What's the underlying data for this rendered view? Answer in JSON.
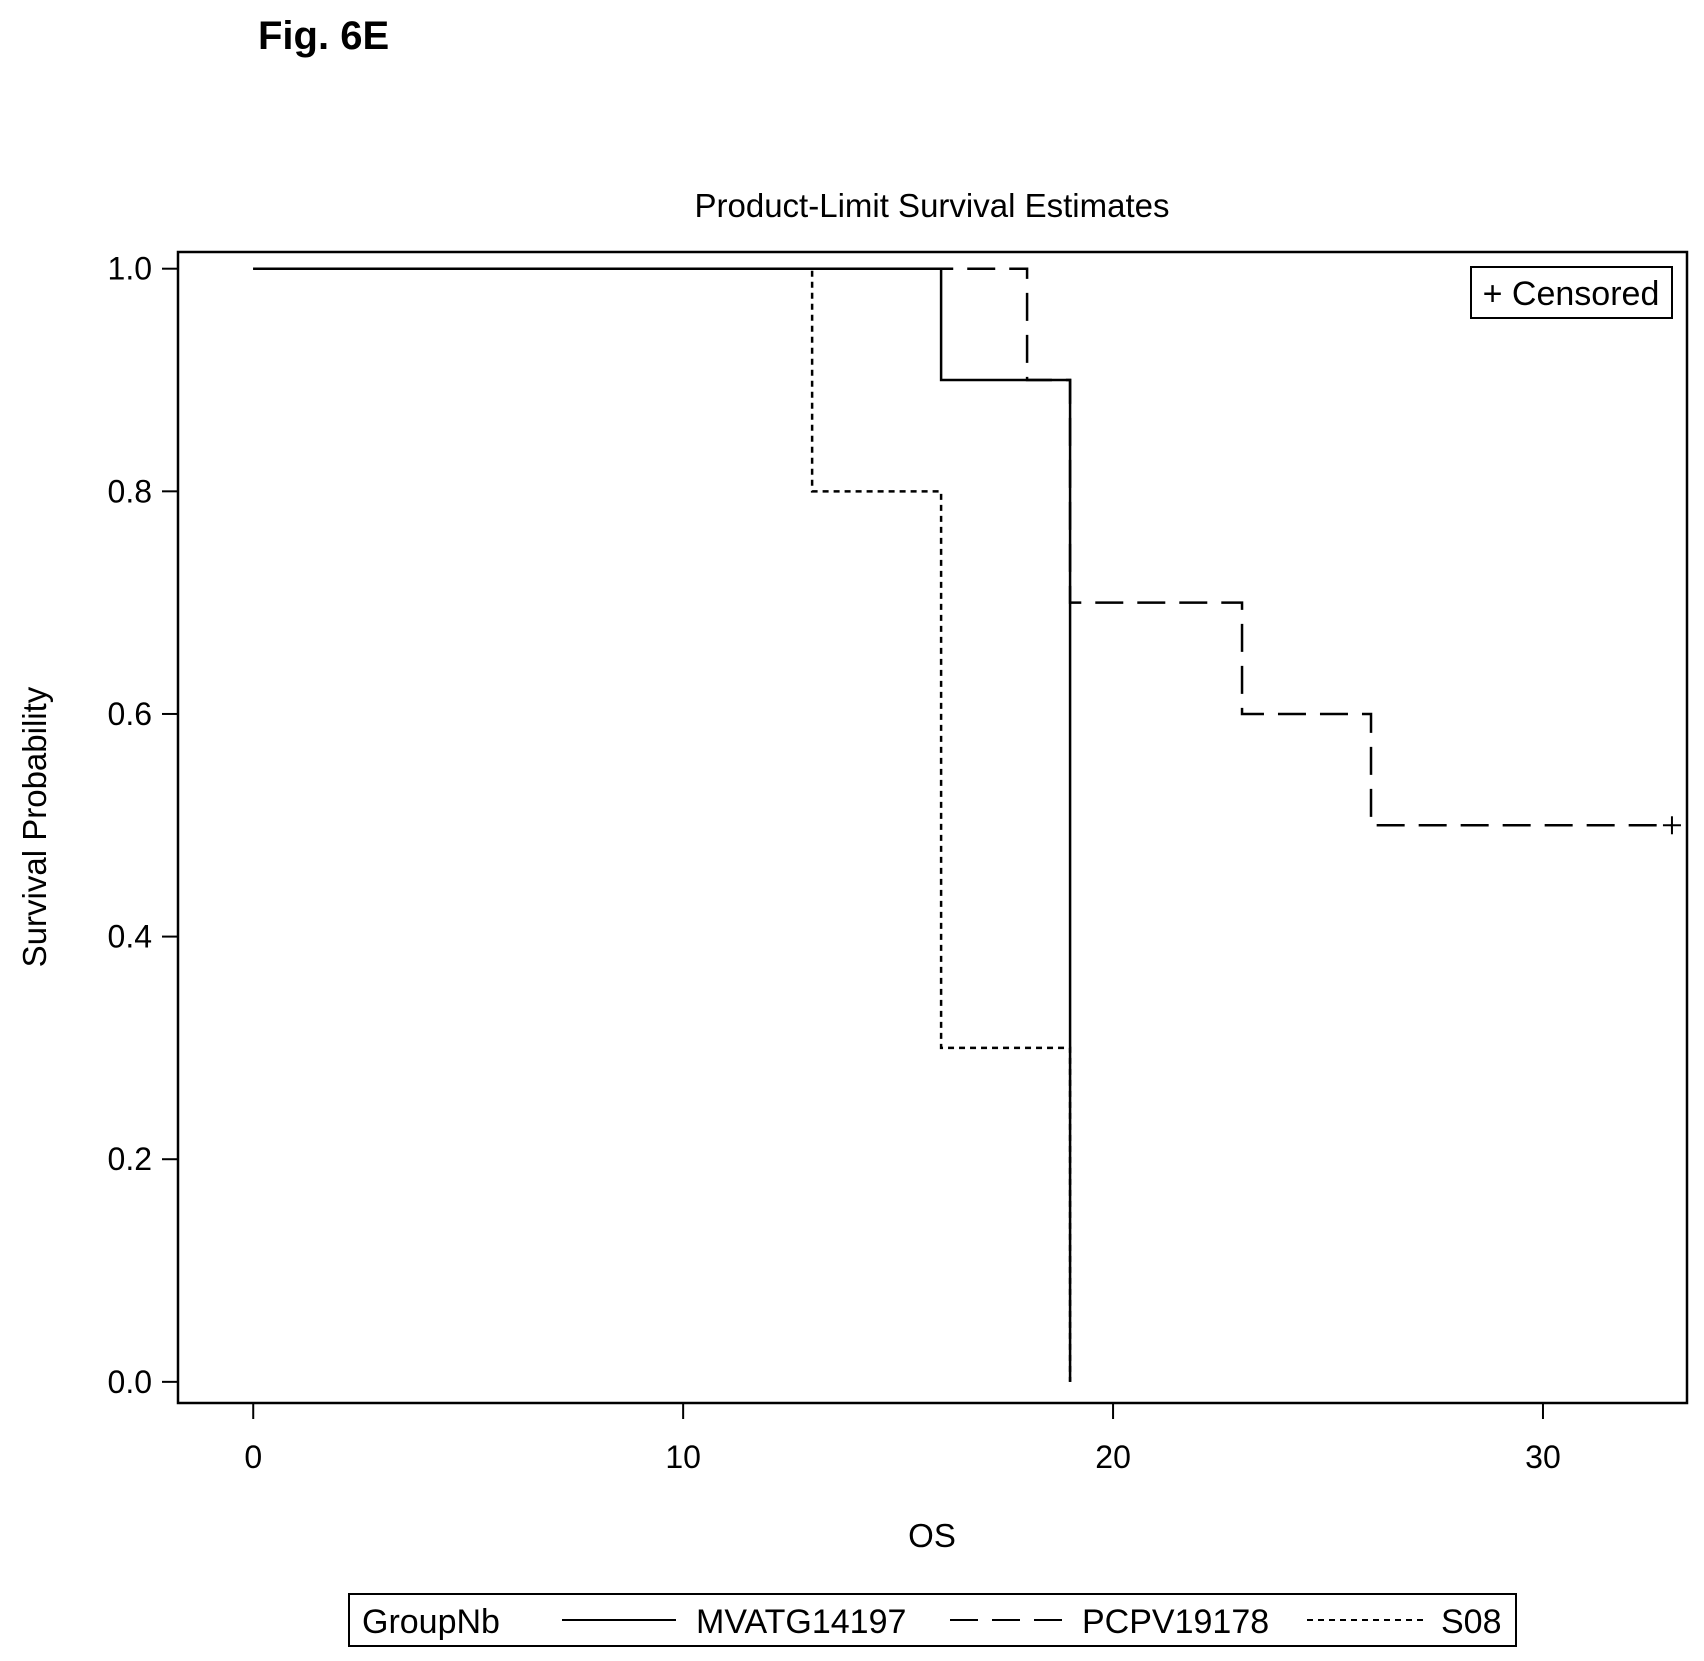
{
  "figure_label": "Fig. 6E",
  "chart_data": {
    "type": "line",
    "subtype": "kaplan-meier step",
    "title": "Product-Limit Survival Estimates",
    "xlabel": "OS",
    "ylabel": "Survival Probability",
    "xlim": [
      -1.75,
      33.35
    ],
    "ylim": [
      -0.019,
      1.015
    ],
    "xticks": [
      "0",
      "10",
      "20",
      "30"
    ],
    "yticks": [
      "0.0",
      "0.2",
      "0.4",
      "0.6",
      "0.8",
      "1.0"
    ],
    "censor_note": "+ Censored",
    "legend": {
      "title": "GroupNb",
      "placement": "bottom"
    },
    "series": [
      {
        "name": "MVATG14197",
        "style": "solid",
        "steps": [
          [
            0,
            1.0
          ],
          [
            16,
            0.9
          ],
          [
            19,
            0.0
          ]
        ],
        "end": 19,
        "censored": []
      },
      {
        "name": "PCPV19178",
        "style": "long-dash",
        "steps": [
          [
            0,
            1.0
          ],
          [
            18,
            0.9
          ],
          [
            19,
            0.7
          ],
          [
            23,
            0.6
          ],
          [
            26,
            0.5
          ]
        ],
        "end": 33,
        "censored": [
          [
            33,
            0.5
          ]
        ]
      },
      {
        "name": "S08",
        "style": "short-dash",
        "steps": [
          [
            0,
            1.0
          ],
          [
            13,
            0.8
          ],
          [
            16,
            0.3
          ],
          [
            19,
            0.0
          ]
        ],
        "end": 19,
        "censored": []
      }
    ]
  }
}
